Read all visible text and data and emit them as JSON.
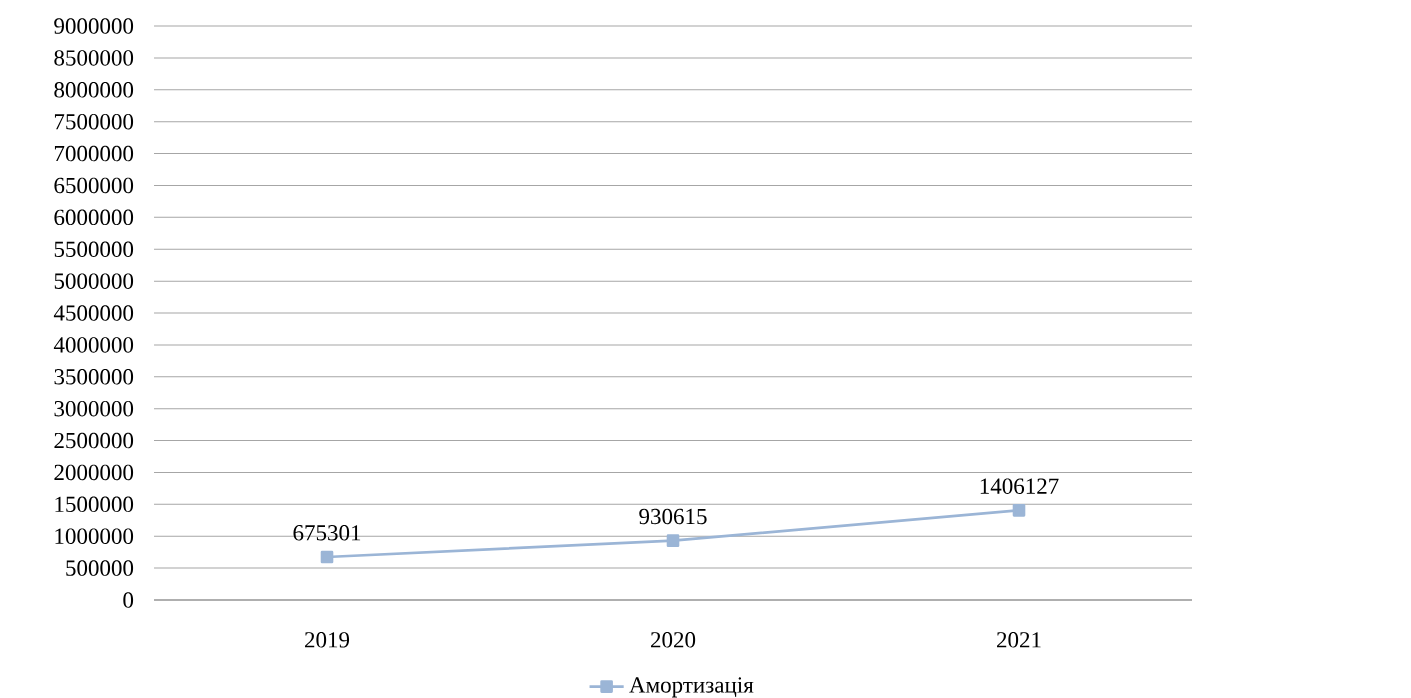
{
  "chart_data": {
    "type": "line",
    "categories": [
      "2019",
      "2020",
      "2021"
    ],
    "series": [
      {
        "name": "Амортизація",
        "color": "#9bb5d6",
        "values": [
          675301,
          930615,
          1406127
        ]
      }
    ],
    "ylim": [
      0,
      9000000
    ],
    "yticks": [
      0,
      500000,
      1000000,
      1500000,
      2000000,
      2500000,
      3000000,
      3500000,
      4000000,
      4500000,
      5000000,
      5500000,
      6000000,
      6500000,
      7000000,
      7500000,
      8000000,
      8500000,
      9000000
    ],
    "grid": "y",
    "legend": "bottom",
    "marker": "square",
    "data_labels": true
  }
}
